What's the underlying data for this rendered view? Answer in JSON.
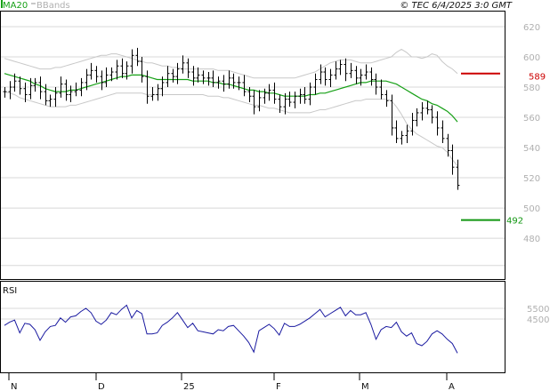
{
  "header": {
    "ma_label": "MA20",
    "bbands_label": "BBands",
    "copyright": "© TEC 6/4/2025 3:0 GMT"
  },
  "rsi_label": "RSI",
  "colors": {
    "ma": "#16a016",
    "bbands": "#c8c8c8",
    "rsi": "#1a1aa0",
    "candle": "#000000",
    "resistance": "#cc0000",
    "support": "#129612",
    "grid": "#d8d8d8"
  },
  "chart_data": {
    "type": "line",
    "title": "",
    "price_axis": {
      "ticks": [
        "620",
        "600",
        "580",
        "560",
        "540",
        "520",
        "500",
        "480"
      ],
      "values": [
        620,
        600,
        580,
        560,
        540,
        520,
        500,
        480
      ],
      "ylim": [
        453,
        630
      ]
    },
    "rsi_axis": {
      "ticks": [
        "5500",
        "4500"
      ]
    },
    "x_ticks": [
      "N",
      "D",
      "25",
      "F",
      "M",
      "A"
    ],
    "resistance": {
      "value": 589,
      "label": "589"
    },
    "support": {
      "value": 492,
      "label": "492"
    },
    "closes": [
      577,
      580,
      584,
      579,
      575,
      581,
      583,
      577,
      571,
      572,
      576,
      582,
      575,
      577,
      578,
      583,
      588,
      591,
      587,
      583,
      588,
      590,
      594,
      589,
      594,
      601,
      597,
      587,
      574,
      575,
      579,
      583,
      589,
      587,
      592,
      596,
      590,
      586,
      588,
      586,
      586,
      583,
      584,
      582,
      586,
      583,
      583,
      577,
      574,
      567,
      573,
      576,
      578,
      572,
      567,
      572,
      570,
      574,
      575,
      572,
      580,
      585,
      590,
      585,
      588,
      592,
      595,
      589,
      591,
      586,
      588,
      590,
      585,
      580,
      575,
      571,
      553,
      546,
      548,
      551,
      558,
      563,
      566,
      565,
      560,
      553,
      546,
      538,
      527,
      515
    ],
    "ma20": [
      589,
      588,
      587,
      586,
      585,
      584,
      582,
      581,
      579,
      578,
      577,
      577,
      577,
      578,
      578,
      579,
      580,
      581,
      582,
      583,
      584,
      585,
      586,
      587,
      587,
      588,
      588,
      588,
      587,
      586,
      585,
      585,
      585,
      585,
      585,
      585,
      585,
      584,
      584,
      584,
      584,
      583,
      583,
      582,
      582,
      581,
      580,
      579,
      578,
      578,
      577,
      577,
      576,
      576,
      575,
      574,
      574,
      574,
      574,
      574,
      575,
      575,
      576,
      576,
      577,
      578,
      579,
      580,
      581,
      582,
      583,
      583,
      584,
      584,
      584,
      584,
      583,
      582,
      580,
      578,
      576,
      574,
      572,
      571,
      569,
      568,
      566,
      564,
      561,
      557
    ],
    "bb_upper": [
      599,
      598,
      597,
      596,
      595,
      594,
      593,
      592,
      592,
      592,
      593,
      593,
      594,
      595,
      596,
      597,
      598,
      599,
      600,
      601,
      601,
      602,
      602,
      601,
      600,
      599,
      598,
      597,
      596,
      596,
      595,
      594,
      594,
      593,
      593,
      592,
      592,
      592,
      592,
      592,
      592,
      592,
      591,
      591,
      591,
      590,
      589,
      588,
      587,
      586,
      586,
      586,
      586,
      586,
      586,
      586,
      586,
      586,
      587,
      588,
      589,
      590,
      592,
      594,
      596,
      597,
      598,
      598,
      598,
      597,
      596,
      596,
      596,
      597,
      598,
      599,
      600,
      603,
      605,
      603,
      600,
      600,
      599,
      600,
      602,
      601,
      597,
      594,
      592,
      589
    ],
    "bb_lower": [
      577,
      576,
      575,
      573,
      572,
      571,
      570,
      569,
      568,
      567,
      567,
      567,
      567,
      568,
      568,
      569,
      570,
      571,
      572,
      573,
      574,
      575,
      576,
      576,
      576,
      576,
      576,
      576,
      575,
      575,
      575,
      575,
      575,
      575,
      575,
      575,
      575,
      575,
      575,
      575,
      574,
      574,
      574,
      573,
      573,
      572,
      571,
      570,
      569,
      568,
      568,
      567,
      566,
      566,
      565,
      564,
      563,
      563,
      563,
      563,
      563,
      564,
      565,
      565,
      566,
      567,
      568,
      569,
      570,
      571,
      571,
      572,
      572,
      572,
      572,
      572,
      571,
      567,
      562,
      556,
      552,
      549,
      547,
      545,
      543,
      541,
      540,
      537,
      532,
      528
    ],
    "rsi": [
      59,
      62,
      64,
      52,
      61,
      60,
      55,
      45,
      53,
      58,
      59,
      66,
      62,
      67,
      68,
      72,
      75,
      71,
      63,
      60,
      64,
      71,
      69,
      74,
      78,
      66,
      73,
      70,
      51,
      51,
      52,
      59,
      62,
      66,
      71,
      64,
      57,
      61,
      54,
      53,
      52,
      51,
      55,
      54,
      58,
      59,
      54,
      49,
      43,
      34,
      54,
      57,
      60,
      56,
      50,
      61,
      58,
      58,
      60,
      63,
      66,
      70,
      74,
      67,
      70,
      73,
      76,
      68,
      73,
      69,
      69,
      71,
      60,
      46,
      55,
      58,
      57,
      62,
      53,
      49,
      52,
      42,
      40,
      44,
      51,
      54,
      51,
      46,
      42,
      33
    ]
  }
}
